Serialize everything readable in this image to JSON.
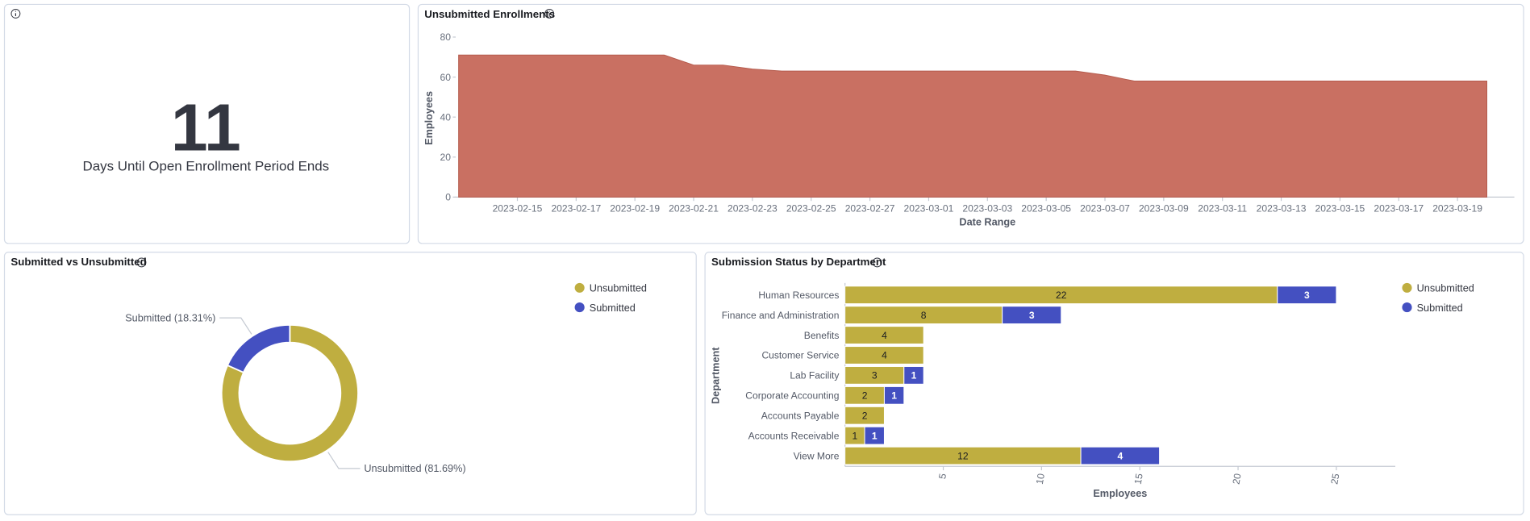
{
  "metric": {
    "value": 11,
    "label": "Days Until Open Enrollment Period Ends"
  },
  "chart_data": [
    {
      "type": "area",
      "title": "Unsubmitted Enrollments",
      "x_label": "Date Range",
      "y_label": "Employees",
      "color": "#c97062",
      "x": [
        "2023-02-13",
        "2023-02-14",
        "2023-02-15",
        "2023-02-16",
        "2023-02-17",
        "2023-02-18",
        "2023-02-19",
        "2023-02-20",
        "2023-02-21",
        "2023-02-22",
        "2023-02-23",
        "2023-02-24",
        "2023-02-25",
        "2023-02-26",
        "2023-02-27",
        "2023-02-28",
        "2023-03-01",
        "2023-03-02",
        "2023-03-03",
        "2023-03-04",
        "2023-03-05",
        "2023-03-06",
        "2023-03-07",
        "2023-03-08",
        "2023-03-09",
        "2023-03-10",
        "2023-03-11",
        "2023-03-12",
        "2023-03-13",
        "2023-03-14",
        "2023-03-15",
        "2023-03-16",
        "2023-03-17",
        "2023-03-18",
        "2023-03-19",
        "2023-03-20"
      ],
      "values": [
        71,
        71,
        71,
        71,
        71,
        71,
        71,
        71,
        66,
        66,
        64,
        63,
        63,
        63,
        63,
        63,
        63,
        63,
        63,
        63,
        63,
        63,
        61,
        58,
        58,
        58,
        58,
        58,
        58,
        58,
        58,
        58,
        58,
        58,
        58,
        58
      ],
      "xticks": [
        "2023-02-15",
        "2023-02-17",
        "2023-02-19",
        "2023-02-21",
        "2023-02-23",
        "2023-02-25",
        "2023-02-27",
        "2023-03-01",
        "2023-03-03",
        "2023-03-05",
        "2023-03-07",
        "2023-03-09",
        "2023-03-11",
        "2023-03-13",
        "2023-03-15",
        "2023-03-17",
        "2023-03-19"
      ],
      "ylim": [
        0,
        80
      ],
      "yticks": [
        0,
        20,
        40,
        60,
        80
      ]
    },
    {
      "type": "donut",
      "title": "Submitted vs Unsubmitted",
      "categories": [
        "Unsubmitted",
        "Submitted"
      ],
      "values": [
        81.69,
        18.31
      ],
      "value_labels": [
        "Unsubmitted (81.69%)",
        "Submitted (18.31%)"
      ],
      "colors": [
        "#bfae40",
        "#4450c1"
      ],
      "legend": "top-right"
    },
    {
      "type": "hbar-stacked",
      "title": "Submission Status by Department",
      "x_label": "Employees",
      "y_label": "Department",
      "categories": [
        "Human Resources",
        "Finance and Administration",
        "Benefits",
        "Customer Service",
        "Lab Facility",
        "Corporate Accounting",
        "Accounts Payable",
        "Accounts Receivable",
        "View More"
      ],
      "series": [
        {
          "name": "Unsubmitted",
          "color": "#bfae40",
          "values": [
            22,
            8,
            4,
            4,
            3,
            2,
            2,
            1,
            12
          ]
        },
        {
          "name": "Submitted",
          "color": "#4450c1",
          "values": [
            3,
            3,
            null,
            null,
            1,
            1,
            null,
            1,
            4
          ]
        }
      ],
      "xlim": [
        0,
        28
      ],
      "xticks": [
        5,
        10,
        15,
        20,
        25
      ],
      "legend": "top-right"
    }
  ]
}
